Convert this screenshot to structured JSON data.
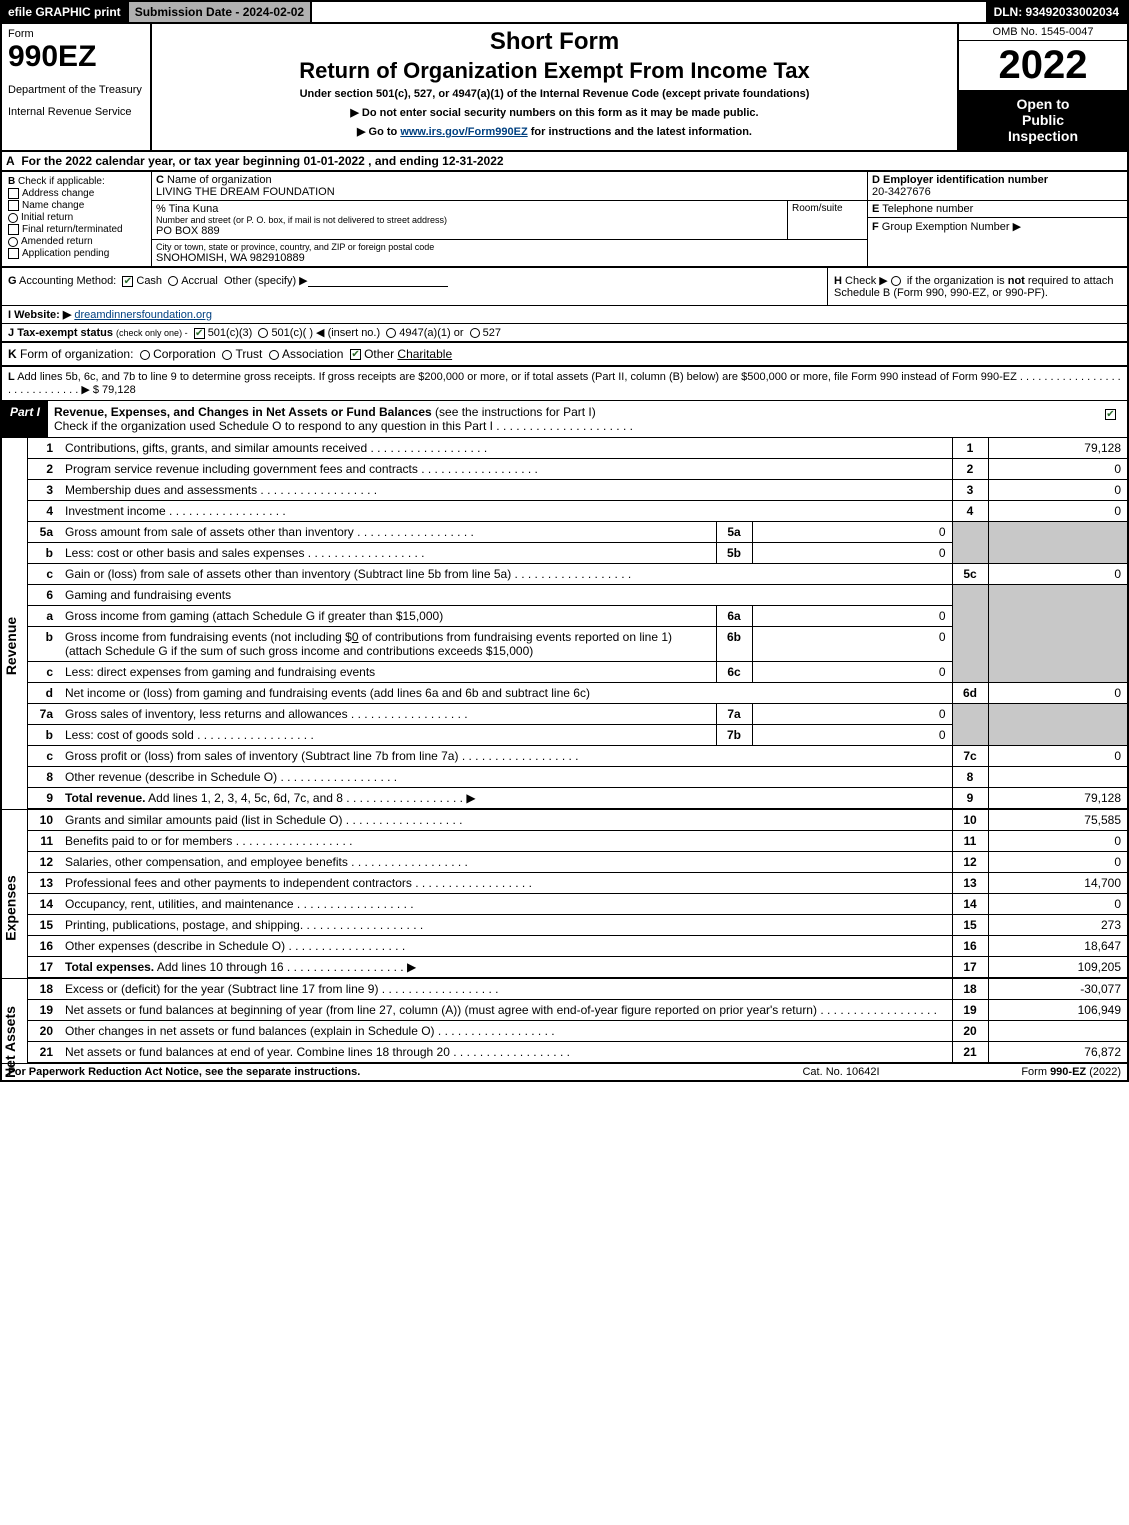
{
  "topbar": {
    "efile": "efile GRAPHIC print",
    "submission": "Submission Date - 2024-02-02",
    "dln": "DLN: 93492033002034"
  },
  "header": {
    "form_word": "Form",
    "form_number": "990EZ",
    "dept1": "Department of the Treasury",
    "dept2": "Internal Revenue Service",
    "short": "Short Form",
    "return": "Return of Organization Exempt From Income Tax",
    "under": "Under section 501(c), 527, or 4947(a)(1) of the Internal Revenue Code (except private foundations)",
    "no_ssn": "▶ Do not enter social security numbers on this form as it may be made public.",
    "goto_pre": "▶ Go to ",
    "goto_link": "www.irs.gov/Form990EZ",
    "goto_post": " for instructions and the latest information.",
    "omb": "OMB No. 1545-0047",
    "year": "2022",
    "inspect1": "Open to",
    "inspect2": "Public",
    "inspect3": "Inspection"
  },
  "row_a": {
    "lead": "A",
    "text": "For the 2022 calendar year, or tax year beginning 01-01-2022 , and ending 12-31-2022"
  },
  "box_b": {
    "lead": "B",
    "title": "Check if applicable:",
    "addr": "Address change",
    "name": "Name change",
    "initial": "Initial return",
    "final": "Final return/terminated",
    "amended": "Amended return",
    "pending": "Application pending"
  },
  "box_c": {
    "lead": "C",
    "name_label": "Name of organization",
    "org_name": "LIVING THE DREAM FOUNDATION",
    "care_of": "% Tina Kuna",
    "street_label": "Number and street (or P. O. box, if mail is not delivered to street address)",
    "street": "PO BOX 889",
    "room_label": "Room/suite",
    "city_label": "City or town, state or province, country, and ZIP or foreign postal code",
    "city": "SNOHOMISH, WA  982910889"
  },
  "box_de": {
    "d_lead": "D",
    "d_label": "Employer identification number",
    "ein": "20-3427676",
    "e_lead": "E",
    "e_label": "Telephone number",
    "f_lead": "F",
    "f_label": "Group Exemption Number  ▶"
  },
  "box_g": {
    "lead": "G",
    "label": "Accounting Method:",
    "cash": "Cash",
    "accrual": "Accrual",
    "other": "Other (specify) ▶"
  },
  "box_h": {
    "lead": "H",
    "text1": "Check ▶",
    "text2": "if the organization is ",
    "not": "not",
    "text3": " required to attach Schedule B (Form 990, 990-EZ, or 990-PF)."
  },
  "box_i": {
    "lead": "I",
    "label": "Website: ▶",
    "url": "dreamdinnersfoundation.org"
  },
  "box_j": {
    "lead": "J",
    "label": "Tax-exempt status",
    "sub": "(check only one) -",
    "o1": "501(c)(3)",
    "o2": "501(c)(  ) ◀ (insert no.)",
    "o3": "4947(a)(1) or",
    "o4": "527"
  },
  "box_k": {
    "lead": "K",
    "label": "Form of organization:",
    "corp": "Corporation",
    "trust": "Trust",
    "assoc": "Association",
    "other": "Other",
    "other_val": "Charitable"
  },
  "box_l": {
    "lead": "L",
    "text": "Add lines 5b, 6c, and 7b to line 9 to determine gross receipts. If gross receipts are $200,000 or more, or if total assets (Part II, column (B) below) are $500,000 or more, file Form 990 instead of Form 990-EZ  .  .  .  .  .  .  .  .  .  .  .  .  .  .  .  .  .  .  .  .  .  .  .  .  .  .  .  .  .  ▶",
    "amount": "$ 79,128"
  },
  "part1": {
    "part": "Part I",
    "title": "Revenue, Expenses, and Changes in Net Assets or Fund Balances",
    "title_sub": " (see the instructions for Part I)",
    "subtitle": "Check if the organization used Schedule O to respond to any question in this Part I  .  .  .  .  .  .  .  .  .  .  .  .  .  .  .  .  .  .  .  .  ."
  },
  "sidebar": {
    "revenue": "Revenue",
    "expenses": "Expenses",
    "netassets": "Net Assets"
  },
  "lines": {
    "l1": {
      "n": "1",
      "t": "Contributions, gifts, grants, and similar amounts received",
      "lab": "1",
      "v": "79,128"
    },
    "l2": {
      "n": "2",
      "t": "Program service revenue including government fees and contracts",
      "lab": "2",
      "v": "0"
    },
    "l3": {
      "n": "3",
      "t": "Membership dues and assessments",
      "lab": "3",
      "v": "0"
    },
    "l4": {
      "n": "4",
      "t": "Investment income",
      "lab": "4",
      "v": "0"
    },
    "l5a": {
      "n": "5a",
      "t": "Gross amount from sale of assets other than inventory",
      "sl": "5a",
      "sv": "0"
    },
    "l5b": {
      "n": "b",
      "t": "Less: cost or other basis and sales expenses",
      "sl": "5b",
      "sv": "0"
    },
    "l5c": {
      "n": "c",
      "t": "Gain or (loss) from sale of assets other than inventory (Subtract line 5b from line 5a)",
      "lab": "5c",
      "v": "0"
    },
    "l6": {
      "n": "6",
      "t": "Gaming and fundraising events"
    },
    "l6a": {
      "n": "a",
      "t": "Gross income from gaming (attach Schedule G if greater than $15,000)",
      "sl": "6a",
      "sv": "0"
    },
    "l6b": {
      "n": "b",
      "t1": "Gross income from fundraising events (not including $",
      "amt": "0",
      "t2": " of contributions from fundraising events reported on line 1) (attach Schedule G if the sum of such gross income and contributions exceeds $15,000)",
      "sl": "6b",
      "sv": "0"
    },
    "l6c": {
      "n": "c",
      "t": "Less: direct expenses from gaming and fundraising events",
      "sl": "6c",
      "sv": "0"
    },
    "l6d": {
      "n": "d",
      "t": "Net income or (loss) from gaming and fundraising events (add lines 6a and 6b and subtract line 6c)",
      "lab": "6d",
      "v": "0"
    },
    "l7a": {
      "n": "7a",
      "t": "Gross sales of inventory, less returns and allowances",
      "sl": "7a",
      "sv": "0"
    },
    "l7b": {
      "n": "b",
      "t": "Less: cost of goods sold",
      "sl": "7b",
      "sv": "0"
    },
    "l7c": {
      "n": "c",
      "t": "Gross profit or (loss) from sales of inventory (Subtract line 7b from line 7a)",
      "lab": "7c",
      "v": "0"
    },
    "l8": {
      "n": "8",
      "t": "Other revenue (describe in Schedule O)",
      "lab": "8",
      "v": ""
    },
    "l9": {
      "n": "9",
      "tb": "Total revenue.",
      "t": " Add lines 1, 2, 3, 4, 5c, 6d, 7c, and 8",
      "arrow": "▶",
      "lab": "9",
      "v": "79,128"
    },
    "l10": {
      "n": "10",
      "t": "Grants and similar amounts paid (list in Schedule O)",
      "lab": "10",
      "v": "75,585"
    },
    "l11": {
      "n": "11",
      "t": "Benefits paid to or for members",
      "lab": "11",
      "v": "0"
    },
    "l12": {
      "n": "12",
      "t": "Salaries, other compensation, and employee benefits",
      "lab": "12",
      "v": "0"
    },
    "l13": {
      "n": "13",
      "t": "Professional fees and other payments to independent contractors",
      "lab": "13",
      "v": "14,700"
    },
    "l14": {
      "n": "14",
      "t": "Occupancy, rent, utilities, and maintenance",
      "lab": "14",
      "v": "0"
    },
    "l15": {
      "n": "15",
      "t": "Printing, publications, postage, and shipping.",
      "lab": "15",
      "v": "273"
    },
    "l16": {
      "n": "16",
      "t": "Other expenses (describe in Schedule O)",
      "lab": "16",
      "v": "18,647"
    },
    "l17": {
      "n": "17",
      "tb": "Total expenses.",
      "t": " Add lines 10 through 16",
      "arrow": "▶",
      "lab": "17",
      "v": "109,205"
    },
    "l18": {
      "n": "18",
      "t": "Excess or (deficit) for the year (Subtract line 17 from line 9)",
      "lab": "18",
      "v": "-30,077"
    },
    "l19": {
      "n": "19",
      "t": "Net assets or fund balances at beginning of year (from line 27, column (A)) (must agree with end-of-year figure reported on prior year's return)",
      "lab": "19",
      "v": "106,949"
    },
    "l20": {
      "n": "20",
      "t": "Other changes in net assets or fund balances (explain in Schedule O)",
      "lab": "20",
      "v": ""
    },
    "l21": {
      "n": "21",
      "t": "Net assets or fund balances at end of year. Combine lines 18 through 20",
      "lab": "21",
      "v": "76,872"
    }
  },
  "footer": {
    "left": "For Paperwork Reduction Act Notice, see the separate instructions.",
    "center": "Cat. No. 10642I",
    "right_pre": "Form ",
    "right_bold": "990-EZ",
    "right_post": " (2022)"
  },
  "colors": {
    "black": "#000000",
    "grey_header": "#b0b0b0",
    "grey_cell": "#c8c8c8",
    "link": "#004080",
    "check_green": "#2a6a2a"
  }
}
